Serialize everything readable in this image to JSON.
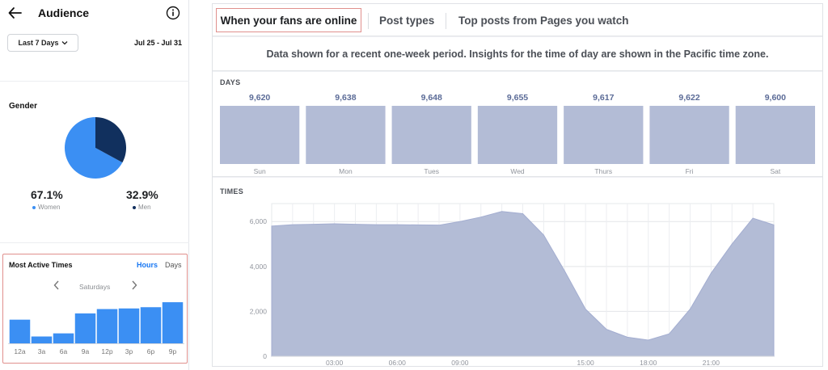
{
  "audience": {
    "title": "Audience",
    "range_button": "Last 7 Days",
    "date_range": "Jul 25 - Jul 31",
    "icons": {
      "back": "arrow-left-icon",
      "info": "info-circle-icon",
      "dropdown": "chevron-down-icon",
      "prev": "chevron-left-icon",
      "next": "chevron-right-icon"
    },
    "gender": {
      "title": "Gender",
      "women": {
        "pct": "67.1%",
        "label": "Women",
        "value": 67.1,
        "color": "#3b8ff3"
      },
      "men": {
        "pct": "32.9%",
        "label": "Men",
        "value": 32.9,
        "color": "#11305e"
      }
    },
    "most_active": {
      "title": "Most Active Times",
      "tab_hours": "Hours",
      "tab_days": "Days",
      "day": "Saturdays"
    }
  },
  "insights": {
    "tabs": {
      "fans_online": "When your fans are online",
      "post_types": "Post types",
      "top_posts": "Top posts from Pages you watch"
    },
    "notice": "Data shown for a recent one-week period. Insights for the time of day are shown in the Pacific time zone.",
    "days_label": "DAYS",
    "times_label": "TIMES"
  },
  "colors": {
    "accent": "#1877f2",
    "bar_blue": "#3b8ff3",
    "insight_fill": "#b3bcd6",
    "value_text": "#5b6b97",
    "highlight_border": "#e0908d"
  },
  "chart_data": [
    {
      "type": "bar",
      "categories": [
        "12a",
        "3a",
        "6a",
        "9a",
        "12p",
        "3p",
        "6p",
        "9p"
      ],
      "values": [
        0.38,
        0.11,
        0.16,
        0.48,
        0.55,
        0.56,
        0.58,
        0.66
      ]
    },
    {
      "type": "bar",
      "categories": [
        "Sun",
        "Mon",
        "Tues",
        "Wed",
        "Thurs",
        "Fri",
        "Sat"
      ],
      "values": [
        9620,
        9638,
        9648,
        9655,
        9617,
        9622,
        9600
      ],
      "value_labels": [
        "9,620",
        "9,638",
        "9,648",
        "9,655",
        "9,617",
        "9,622",
        "9,600"
      ]
    },
    {
      "type": "area",
      "x_tick_labels": [
        "03:00",
        "06:00",
        "09:00",
        "15:00",
        "18:00",
        "21:00"
      ],
      "x_tick_hours": [
        3,
        6,
        9,
        15,
        18,
        21
      ],
      "y_tick_labels": [
        "0",
        "2,000",
        "4,000",
        "6,000"
      ],
      "y_ticks": [
        0,
        2000,
        4000,
        6000
      ],
      "xlim": [
        0,
        24
      ],
      "ylim": [
        0,
        6800
      ],
      "x": [
        0,
        1,
        2,
        3,
        4,
        5,
        6,
        7,
        8,
        9,
        10,
        11,
        12,
        13,
        14,
        15,
        16,
        17,
        18,
        19,
        20,
        21,
        22,
        23,
        24
      ],
      "values": [
        5800,
        5860,
        5880,
        5900,
        5880,
        5860,
        5860,
        5850,
        5840,
        6000,
        6200,
        6450,
        6350,
        5400,
        3800,
        2100,
        1200,
        850,
        720,
        1000,
        2100,
        3700,
        5000,
        6150,
        5850
      ]
    }
  ]
}
